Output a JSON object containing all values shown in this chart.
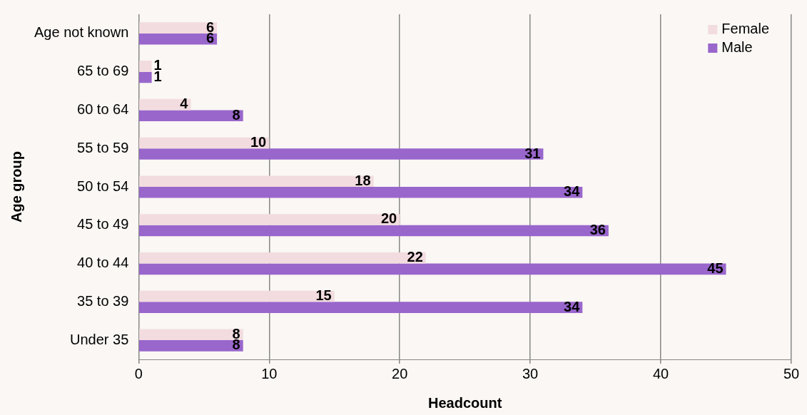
{
  "chart_data": {
    "type": "bar",
    "orientation": "horizontal",
    "xlabel": "Headcount",
    "ylabel": "Age group",
    "categories": [
      "Age not known",
      "65 to 69",
      "60 to 64",
      "55 to 59",
      "50 to 54",
      "45 to 49",
      "40 to 44",
      "35 to 39",
      "Under 35"
    ],
    "series": [
      {
        "name": "Female",
        "color": "#f2dcdf",
        "values": [
          6,
          1,
          4,
          10,
          18,
          20,
          22,
          15,
          8
        ]
      },
      {
        "name": "Male",
        "color": "#9966cc",
        "values": [
          6,
          1,
          8,
          31,
          34,
          36,
          45,
          34,
          8
        ]
      }
    ],
    "xlim": [
      0,
      50
    ],
    "xticks": [
      0,
      10,
      20,
      30,
      40,
      50
    ],
    "grid": "x",
    "legend": "top right",
    "data_labels": true
  }
}
